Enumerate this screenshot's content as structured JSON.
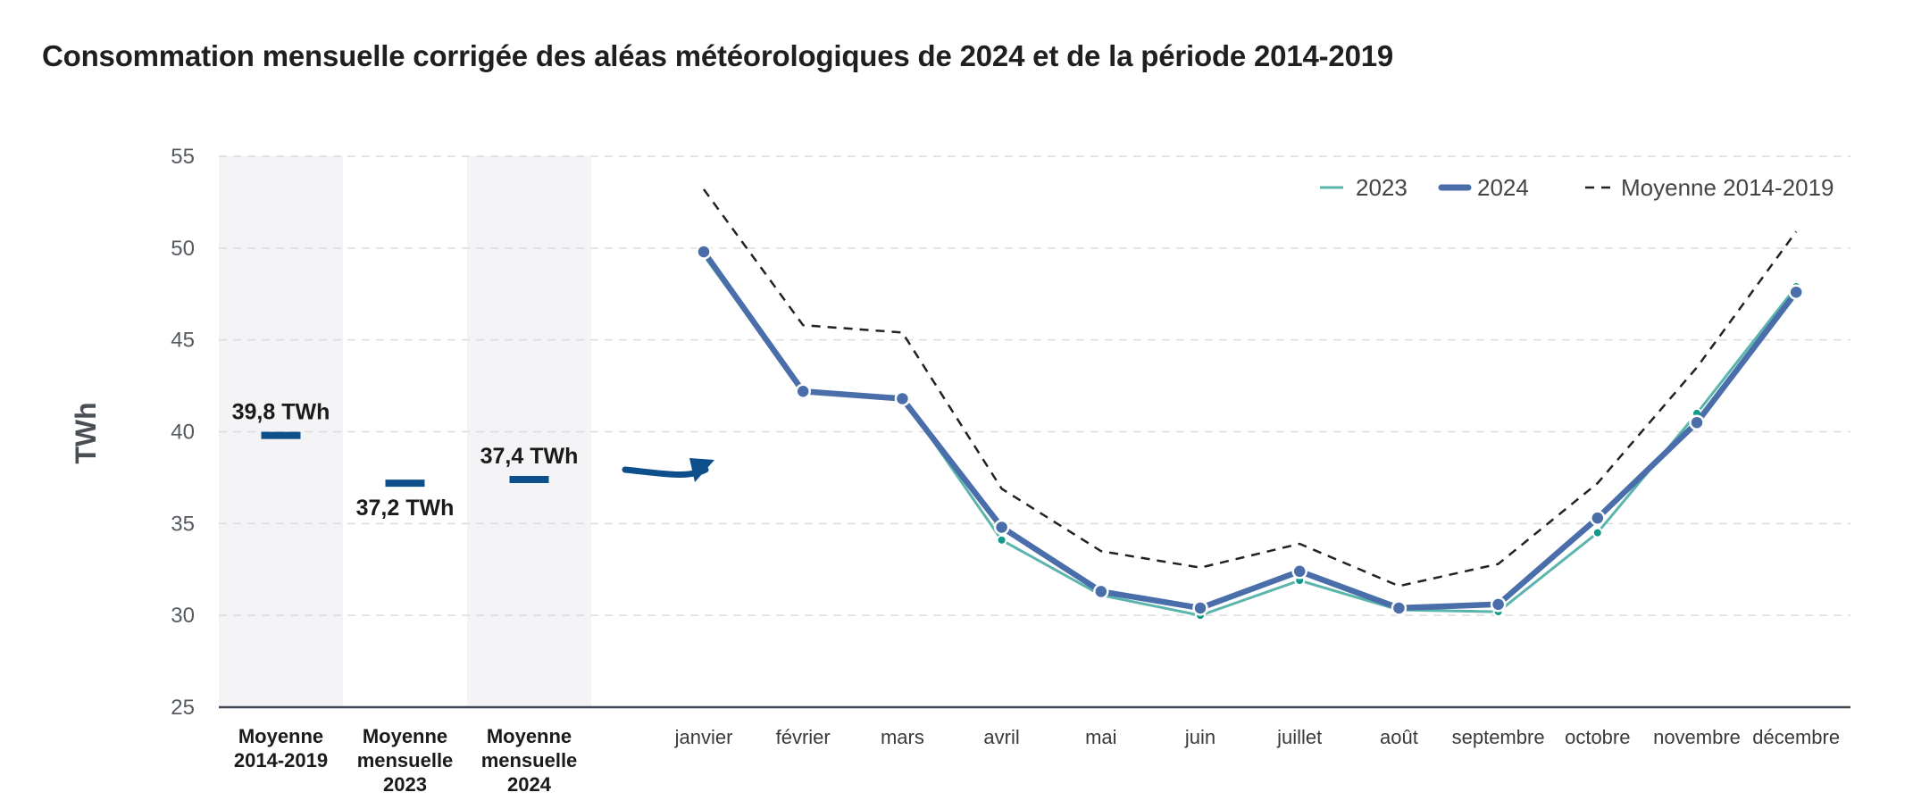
{
  "title": "Consommation mensuelle corrigée des aléas météorologiques de 2024 et de la période 2014-2019",
  "chart_data": {
    "type": "line",
    "title": "Consommation mensuelle corrigée des aléas météorologiques de 2024 et de la période 2014-2019",
    "ylabel": "TWh",
    "xlabel": "",
    "ylim": [
      25,
      55
    ],
    "yticks": [
      "25",
      "30",
      "35",
      "40",
      "45",
      "50",
      "55"
    ],
    "grid": "horizontal dashed",
    "legend_position": "top-right",
    "categories": [
      "janvier",
      "février",
      "mars",
      "avril",
      "mai",
      "juin",
      "juillet",
      "août",
      "septembre",
      "octobre",
      "novembre",
      "décembre"
    ],
    "series": [
      {
        "name": "2023",
        "color": "#5bb5ad",
        "style": "thin-markers",
        "values": [
          49.6,
          42.2,
          41.9,
          34.1,
          31.1,
          30.0,
          31.9,
          30.3,
          30.2,
          34.5,
          41.0,
          47.9
        ]
      },
      {
        "name": "2024",
        "color": "#4a6ea9",
        "style": "thick-markers",
        "values": [
          49.8,
          42.2,
          41.8,
          34.8,
          31.3,
          30.4,
          32.4,
          30.4,
          30.6,
          35.3,
          40.5,
          47.6
        ]
      },
      {
        "name": "Moyenne 2014-2019",
        "color": "#222222",
        "style": "dashed",
        "values": [
          53.2,
          45.8,
          45.4,
          36.9,
          33.5,
          32.6,
          33.9,
          31.6,
          32.8,
          37.2,
          43.5,
          50.9
        ]
      }
    ],
    "summary": [
      {
        "label_lines": [
          "Moyenne",
          "2014-2019"
        ],
        "value": 39.8,
        "value_label": "39,8 TWh",
        "shaded": true
      },
      {
        "label_lines": [
          "Moyenne",
          "mensuelle",
          "2023"
        ],
        "value": 37.2,
        "value_label": "37,2 TWh",
        "shaded": false
      },
      {
        "label_lines": [
          "Moyenne",
          "mensuelle",
          "2024"
        ],
        "value": 37.4,
        "value_label": "37,4 TWh",
        "shaded": true
      }
    ],
    "summary_color": "#0d4f8b",
    "arrow_color": "#0d4f8b"
  }
}
